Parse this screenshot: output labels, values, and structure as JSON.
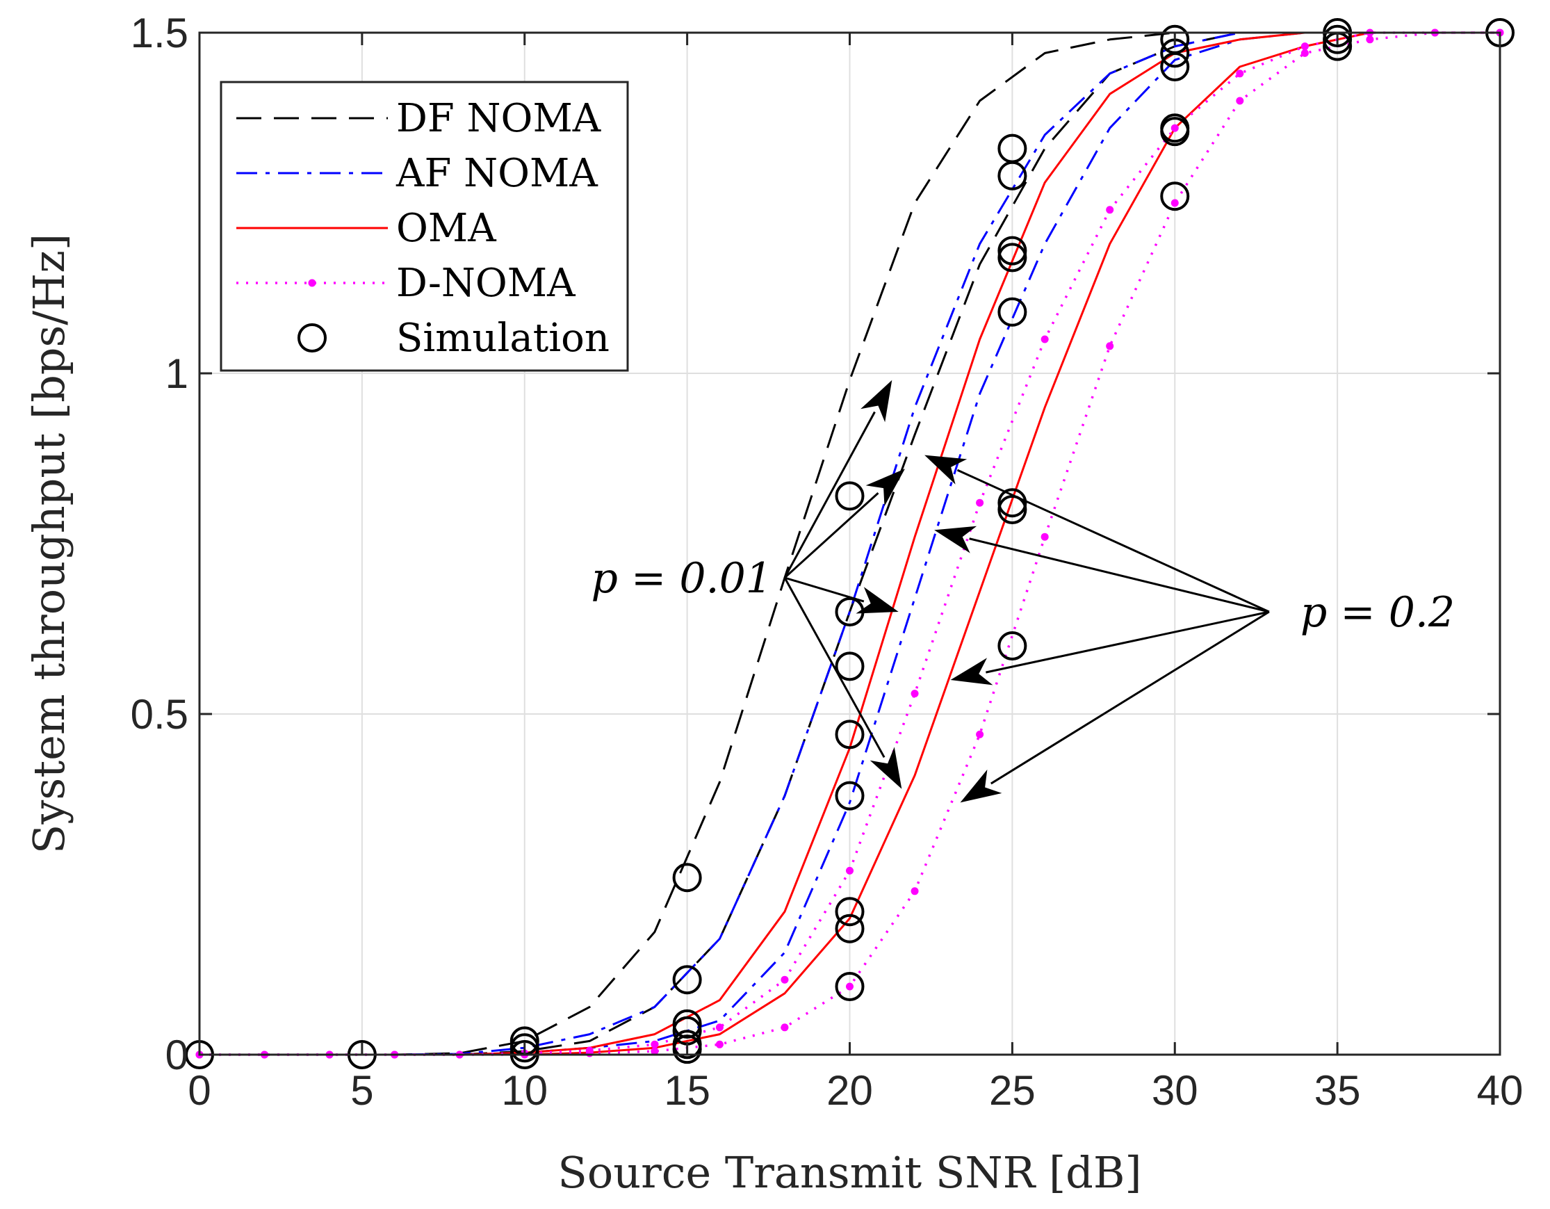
{
  "chart_data": {
    "type": "line",
    "xlabel": "Source Transmit SNR [dB]",
    "ylabel": "System throughput [bps/Hz]",
    "xlim": [
      0,
      40
    ],
    "ylim": [
      0,
      1.5
    ],
    "xticks": [
      0,
      5,
      10,
      15,
      20,
      25,
      30,
      35,
      40
    ],
    "xtick_labels": [
      "0",
      "5",
      "10",
      "15",
      "20",
      "25",
      "30",
      "35",
      "40"
    ],
    "yticks": [
      0,
      0.5,
      1,
      1.5
    ],
    "ytick_labels": [
      "0",
      "0.5",
      "1",
      "1.5"
    ],
    "grid": true,
    "legend_position": "top-left",
    "legend": [
      {
        "key": "df",
        "label": "DF NOMA"
      },
      {
        "key": "af",
        "label": "AF NOMA"
      },
      {
        "key": "oma",
        "label": "OMA"
      },
      {
        "key": "dnoma",
        "label": "D-NOMA"
      },
      {
        "key": "sim",
        "label": "Simulation"
      }
    ],
    "colors": {
      "df": "#000000",
      "af": "#0000ff",
      "oma": "#ff0000",
      "dnoma": "#ff00ff",
      "sim": "#000000"
    },
    "x": [
      0,
      2,
      4,
      6,
      8,
      10,
      12,
      14,
      16,
      18,
      20,
      22,
      24,
      26,
      28,
      30,
      32,
      34,
      36,
      38,
      40
    ],
    "series": [
      {
        "name": "DF NOMA",
        "style": "df",
        "p": 0.01,
        "values": [
          0,
          0,
          0,
          0,
          0.002,
          0.02,
          0.07,
          0.18,
          0.4,
          0.7,
          0.99,
          1.25,
          1.4,
          1.47,
          1.49,
          1.5,
          1.5,
          1.5,
          1.5,
          1.5,
          1.5
        ]
      },
      {
        "name": "DF NOMA",
        "style": "df",
        "p": 0.2,
        "values": [
          0,
          0,
          0,
          0,
          0,
          0.005,
          0.02,
          0.07,
          0.17,
          0.38,
          0.65,
          0.91,
          1.16,
          1.33,
          1.44,
          1.48,
          1.5,
          1.5,
          1.5,
          1.5,
          1.5
        ]
      },
      {
        "name": "AF NOMA",
        "style": "af",
        "p": 0.01,
        "values": [
          0,
          0,
          0,
          0,
          0.001,
          0.01,
          0.03,
          0.07,
          0.17,
          0.38,
          0.65,
          0.95,
          1.19,
          1.35,
          1.44,
          1.48,
          1.5,
          1.5,
          1.5,
          1.5,
          1.5
        ]
      },
      {
        "name": "AF NOMA",
        "style": "af",
        "p": 0.2,
        "values": [
          0,
          0,
          0,
          0,
          0,
          0.003,
          0.01,
          0.02,
          0.05,
          0.15,
          0.37,
          0.67,
          0.97,
          1.19,
          1.36,
          1.46,
          1.49,
          1.5,
          1.5,
          1.5,
          1.5
        ]
      },
      {
        "name": "OMA",
        "style": "oma",
        "p": 0.01,
        "values": [
          0,
          0,
          0,
          0,
          0,
          0.003,
          0.01,
          0.03,
          0.08,
          0.21,
          0.45,
          0.76,
          1.05,
          1.28,
          1.41,
          1.47,
          1.49,
          1.5,
          1.5,
          1.5,
          1.5
        ]
      },
      {
        "name": "OMA",
        "style": "oma",
        "p": 0.2,
        "values": [
          0,
          0,
          0,
          0,
          0,
          0,
          0.003,
          0.01,
          0.03,
          0.09,
          0.2,
          0.41,
          0.68,
          0.95,
          1.19,
          1.36,
          1.45,
          1.48,
          1.5,
          1.5,
          1.5
        ]
      },
      {
        "name": "D-NOMA",
        "style": "dnoma",
        "p": 0.01,
        "values": [
          0,
          0,
          0,
          0,
          0,
          0.002,
          0.006,
          0.015,
          0.04,
          0.11,
          0.27,
          0.53,
          0.81,
          1.05,
          1.24,
          1.36,
          1.44,
          1.48,
          1.5,
          1.5,
          1.5
        ]
      },
      {
        "name": "D-NOMA",
        "style": "dnoma",
        "p": 0.2,
        "values": [
          0,
          0,
          0,
          0,
          0,
          0,
          0.002,
          0.005,
          0.015,
          0.04,
          0.1,
          0.24,
          0.47,
          0.76,
          1.04,
          1.25,
          1.4,
          1.47,
          1.49,
          1.5,
          1.5
        ]
      }
    ],
    "simulation_points": [
      {
        "x": 0,
        "y": 0
      },
      {
        "x": 5,
        "y": 0
      },
      {
        "x": 10,
        "y": 0.02
      },
      {
        "x": 10,
        "y": 0.01
      },
      {
        "x": 10,
        "y": 0
      },
      {
        "x": 15,
        "y": 0.26
      },
      {
        "x": 15,
        "y": 0.11
      },
      {
        "x": 15,
        "y": 0.045
      },
      {
        "x": 15,
        "y": 0.035
      },
      {
        "x": 15,
        "y": 0.015
      },
      {
        "x": 15,
        "y": 0.008
      },
      {
        "x": 20,
        "y": 0.82
      },
      {
        "x": 20,
        "y": 0.65
      },
      {
        "x": 20,
        "y": 0.57
      },
      {
        "x": 20,
        "y": 0.47
      },
      {
        "x": 20,
        "y": 0.38
      },
      {
        "x": 20,
        "y": 0.21
      },
      {
        "x": 20,
        "y": 0.185
      },
      {
        "x": 20,
        "y": 0.1
      },
      {
        "x": 25,
        "y": 1.33
      },
      {
        "x": 25,
        "y": 1.29
      },
      {
        "x": 25,
        "y": 1.18
      },
      {
        "x": 25,
        "y": 1.17
      },
      {
        "x": 25,
        "y": 1.09
      },
      {
        "x": 25,
        "y": 0.81
      },
      {
        "x": 25,
        "y": 0.8
      },
      {
        "x": 25,
        "y": 0.6
      },
      {
        "x": 30,
        "y": 1.49
      },
      {
        "x": 30,
        "y": 1.47
      },
      {
        "x": 30,
        "y": 1.45
      },
      {
        "x": 30,
        "y": 1.36
      },
      {
        "x": 30,
        "y": 1.355
      },
      {
        "x": 30,
        "y": 1.26
      },
      {
        "x": 35,
        "y": 1.5
      },
      {
        "x": 35,
        "y": 1.49
      },
      {
        "x": 35,
        "y": 1.48
      },
      {
        "x": 40,
        "y": 1.5
      }
    ],
    "annotations": [
      {
        "id": "p001",
        "label": "p = 0.01",
        "anchor": {
          "x": 18.0,
          "y": 0.7
        },
        "arrow_targets": [
          {
            "x": 21.3,
            "y": 0.99
          },
          {
            "x": 21.7,
            "y": 0.86
          },
          {
            "x": 21.5,
            "y": 0.65
          },
          {
            "x": 21.6,
            "y": 0.39
          }
        ]
      },
      {
        "id": "p02",
        "label": "p = 0.2",
        "anchor": {
          "x": 32.9,
          "y": 0.65
        },
        "arrow_targets": [
          {
            "x": 22.3,
            "y": 0.88
          },
          {
            "x": 22.6,
            "y": 0.77
          },
          {
            "x": 23.1,
            "y": 0.55
          },
          {
            "x": 23.4,
            "y": 0.37
          }
        ]
      }
    ]
  }
}
